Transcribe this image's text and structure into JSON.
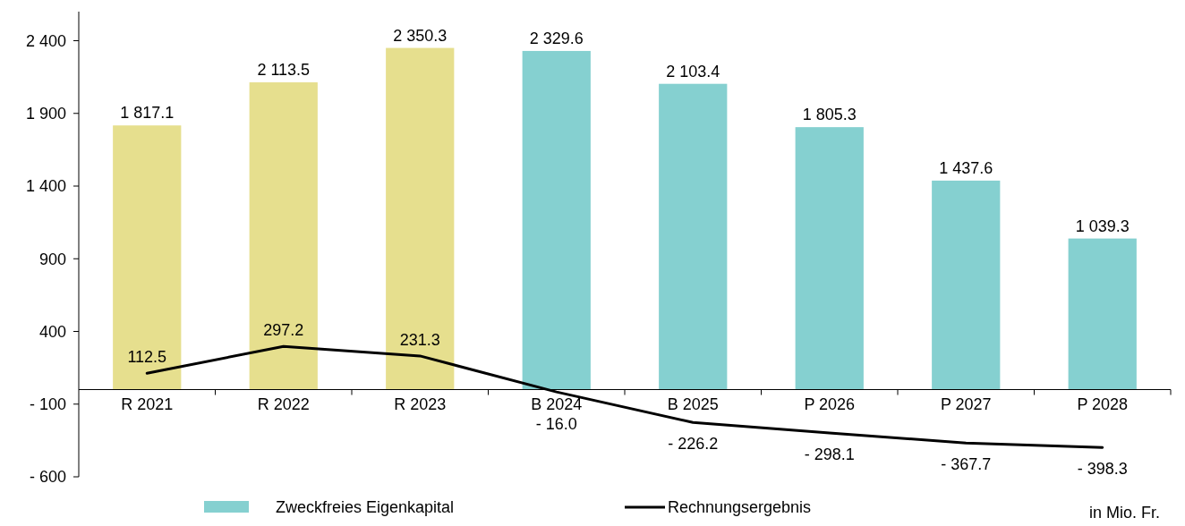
{
  "chart_data": {
    "type": "bar",
    "categories": [
      "R 2021",
      "R 2022",
      "R 2023",
      "B 2024",
      "B 2025",
      "P 2026",
      "P 2027",
      "P 2028"
    ],
    "series": [
      {
        "name": "Zweckfreies Eigenkapital",
        "color": "#85d0d0",
        "colors": [
          "#e6df8e",
          "#e6df8e",
          "#e6df8e",
          "#85d0d0",
          "#85d0d0",
          "#85d0d0",
          "#85d0d0",
          "#85d0d0"
        ],
        "values": [
          1817.1,
          2113.5,
          2350.3,
          2329.6,
          2103.4,
          1805.3,
          1437.6,
          1039.3
        ],
        "value_labels": [
          "1 817.1",
          "2 113.5",
          "2 350.3",
          "2 329.6",
          "2 103.4",
          "1 805.3",
          "1 437.6",
          "1 039.3"
        ]
      },
      {
        "name": "Rechnungsergebnis",
        "type": "line",
        "color": "#000000",
        "values": [
          112.5,
          297.2,
          231.3,
          -16.0,
          -226.2,
          -298.1,
          -367.7,
          -398.3
        ],
        "value_labels": [
          "112.5",
          "297.2",
          "231.3",
          "- 16.0",
          "- 226.2",
          "- 298.1",
          "- 367.7",
          "- 398.3"
        ]
      }
    ],
    "ylim": [
      -600,
      2600
    ],
    "yticks": [
      {
        "value": -600,
        "label": "- 600"
      },
      {
        "value": -100,
        "label": "- 100"
      },
      {
        "value": 400,
        "label": "400"
      },
      {
        "value": 900,
        "label": "900"
      },
      {
        "value": 1400,
        "label": "1 400"
      },
      {
        "value": 1900,
        "label": "1 900"
      },
      {
        "value": 2400,
        "label": "2 400"
      }
    ],
    "legend": "bottom",
    "annotations": [
      "in Mio. Fr."
    ]
  }
}
